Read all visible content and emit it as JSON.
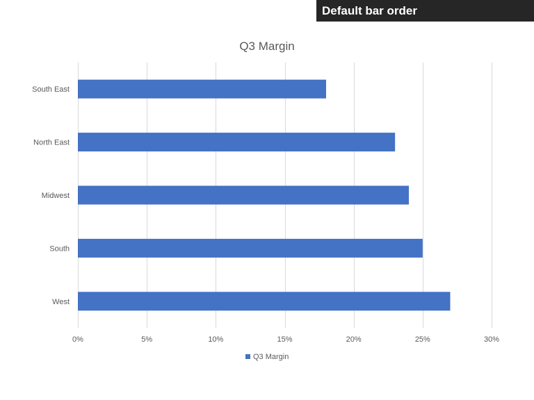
{
  "banner": {
    "text": "Default bar order"
  },
  "chart_data": {
    "type": "bar",
    "orientation": "horizontal",
    "title": "Q3 Margin",
    "categories": [
      "South East",
      "North East",
      "Midwest",
      "South",
      "West"
    ],
    "series": [
      {
        "name": "Q3 Margin",
        "values": [
          18,
          23,
          24,
          25,
          27
        ],
        "color": "#4472C4"
      }
    ],
    "xlim": [
      0,
      30
    ],
    "x_ticks": [
      0,
      5,
      10,
      15,
      20,
      25,
      30
    ],
    "x_tick_labels": [
      "0%",
      "5%",
      "10%",
      "15%",
      "20%",
      "25%",
      "30%"
    ],
    "xlabel": "",
    "ylabel": "",
    "grid": true,
    "legend_position": "bottom",
    "colors": {
      "gridline": "#d9d9d9",
      "text": "#595959"
    }
  }
}
